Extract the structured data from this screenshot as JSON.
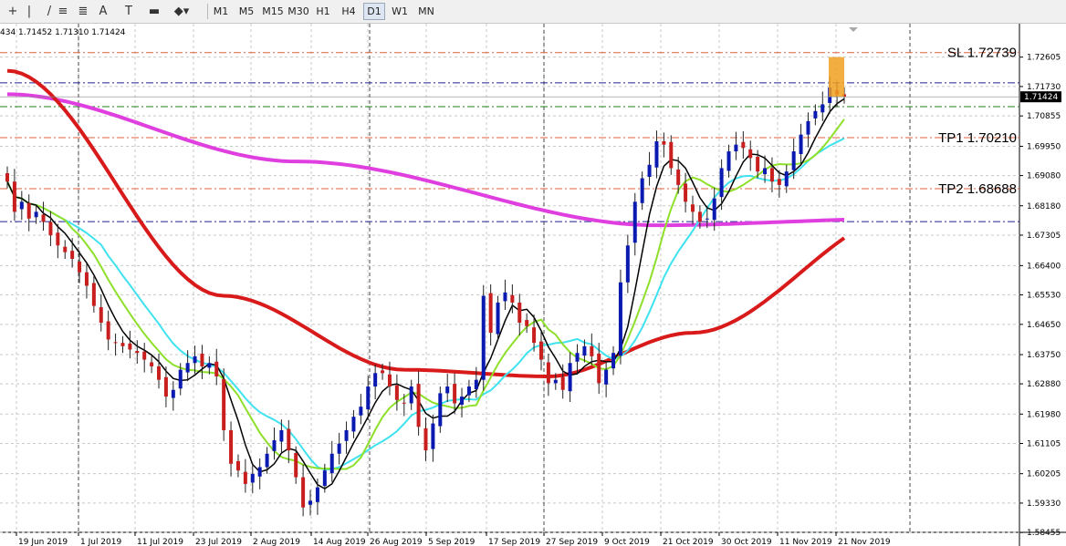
{
  "toolbar": {
    "tools": [
      {
        "name": "crosshair-icon",
        "glyph": "+"
      },
      {
        "name": "vertical-line-icon",
        "glyph": "|"
      },
      {
        "name": "trendline-icon",
        "glyph": "/"
      },
      {
        "name": "equidistant-channel-icon",
        "glyph": "≡"
      },
      {
        "name": "fibonacci-icon",
        "glyph": "≣"
      },
      {
        "name": "text-icon",
        "glyph": "A"
      },
      {
        "name": "text-label-icon",
        "glyph": "T"
      },
      {
        "name": "rectangle-icon",
        "glyph": "▬"
      },
      {
        "name": "shapes-dropdown-icon",
        "glyph": "◆▾"
      }
    ],
    "timeframes": [
      "M1",
      "M5",
      "M15",
      "M30",
      "H1",
      "H4",
      "D1",
      "W1",
      "MN"
    ],
    "active_timeframe": "D1"
  },
  "ohlc_readout": "434 1.71452 1.71310 1.71424",
  "colors": {
    "bull": "#0a1ab0",
    "bear": "#c81e1e",
    "ma_fast": "#000000",
    "ma_green": "#8ee02a",
    "ma_cyan": "#3fe2ef",
    "ma_red": "#d81a1a",
    "ma_magenta": "#e03fe0",
    "orange_box": "#f0a020"
  },
  "chart_data": {
    "type": "candlestick",
    "ylim": [
      1.5846,
      1.736
    ],
    "y_ticks": [
      "1.72605",
      "1.71730",
      "1.70855",
      "1.69950",
      "1.69080",
      "1.68180",
      "1.67305",
      "1.66400",
      "1.65530",
      "1.64650",
      "1.63750",
      "1.62880",
      "1.61980",
      "1.61105",
      "1.60205",
      "1.59330",
      "1.58455"
    ],
    "current_price": "1.71424",
    "x_labels": [
      "19 Jun 2019",
      "1 Jul 2019",
      "11 Jul 2019",
      "23 Jul 2019",
      "2 Aug 2019",
      "14 Aug 2019",
      "26 Aug 2019",
      "5 Sep 2019",
      "17 Sep 2019",
      "27 Sep 2019",
      "9 Oct 2019",
      "21 Oct 2019",
      "30 Oct 2019",
      "11 Nov 2019",
      "21 Nov 2019"
    ],
    "levels": [
      {
        "label": "SL 1.72739",
        "price": 1.72739,
        "color": "#e06040"
      },
      {
        "label": "",
        "price": 1.7184,
        "color": "#202090"
      },
      {
        "label": "",
        "price": 1.7113,
        "color": "#208020"
      },
      {
        "label": "TP1 1.70210",
        "price": 1.7021,
        "color": "#e06040"
      },
      {
        "label": "TP2 1.68688",
        "price": 1.68688,
        "color": "#e06040"
      },
      {
        "label": "",
        "price": 1.6771,
        "color": "#202090"
      }
    ],
    "closes": [
      1.689,
      1.68,
      1.683,
      1.678,
      1.68,
      1.677,
      1.673,
      1.67,
      1.668,
      1.666,
      1.662,
      1.658,
      1.652,
      1.647,
      1.642,
      1.641,
      1.64,
      1.639,
      1.638,
      1.636,
      1.634,
      1.63,
      1.625,
      1.627,
      1.633,
      1.635,
      1.637,
      1.634,
      1.635,
      1.631,
      1.615,
      1.605,
      1.603,
      1.599,
      1.602,
      1.604,
      1.608,
      1.612,
      1.615,
      1.609,
      1.601,
      1.592,
      1.594,
      1.598,
      1.603,
      1.608,
      1.611,
      1.615,
      1.619,
      1.622,
      1.628,
      1.632,
      1.632,
      1.628,
      1.624,
      1.623,
      1.628,
      1.616,
      1.609,
      1.617,
      1.626,
      1.628,
      1.623,
      1.625,
      1.628,
      1.63,
      1.655,
      1.644,
      1.653,
      1.656,
      1.653,
      1.647,
      1.646,
      1.641,
      1.636,
      1.629,
      1.63,
      1.627,
      1.635,
      1.638,
      1.64,
      1.637,
      1.629,
      1.633,
      1.638,
      1.659,
      1.67,
      1.683,
      1.69,
      1.694,
      1.701,
      1.7,
      1.693,
      1.688,
      1.683,
      1.68,
      1.677,
      1.678,
      1.684,
      1.693,
      1.698,
      1.7,
      1.699,
      1.696,
      1.692,
      1.693,
      1.689,
      1.688,
      1.692,
      1.698,
      1.703,
      1.707,
      1.71,
      1.712,
      1.717,
      1.715,
      1.7142
    ],
    "ma_lines": [
      {
        "name": "",
        "color": "#e03fe0",
        "points": [
          [
            0,
            1.715
          ],
          [
            40,
            1.695
          ],
          [
            90,
            1.676
          ],
          [
            125,
            1.678
          ]
        ]
      },
      {
        "name": "",
        "color": "#d81a1a",
        "points": [
          [
            0,
            1.722
          ],
          [
            30,
            1.655
          ],
          [
            55,
            1.633
          ],
          [
            75,
            1.631
          ],
          [
            95,
            1.644
          ],
          [
            125,
            1.68
          ]
        ]
      }
    ]
  }
}
